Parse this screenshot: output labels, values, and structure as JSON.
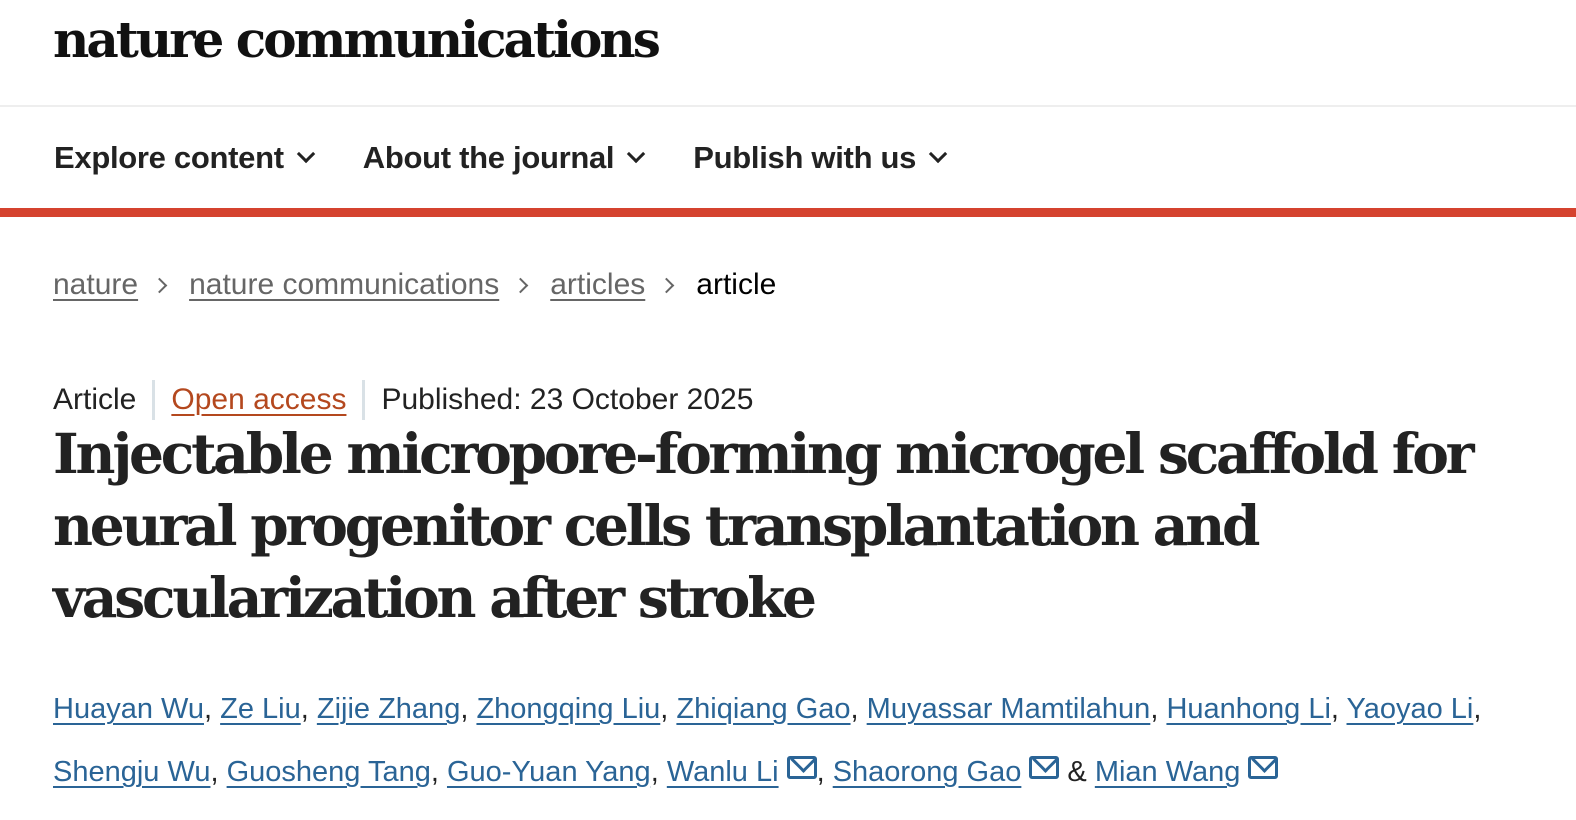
{
  "site": {
    "logo": "nature communications"
  },
  "nav": [
    {
      "label": "Explore content"
    },
    {
      "label": "About the journal"
    },
    {
      "label": "Publish with us"
    }
  ],
  "breadcrumb": {
    "items": [
      "nature",
      "nature communications",
      "articles"
    ],
    "current": "article"
  },
  "meta": {
    "type": "Article",
    "access": "Open access",
    "published": "Published: 23 October 2025"
  },
  "title": "Injectable micropore-forming microgel scaffold for neural progenitor cells transplantation and vascularization after stroke",
  "authors": [
    {
      "name": "Huayan Wu",
      "email": false
    },
    {
      "name": "Ze Liu",
      "email": false
    },
    {
      "name": "Zijie Zhang",
      "email": false
    },
    {
      "name": "Zhongqing Liu",
      "email": false
    },
    {
      "name": "Zhiqiang Gao",
      "email": false
    },
    {
      "name": "Muyassar Mamtilahun",
      "email": false
    },
    {
      "name": "Huanhong Li",
      "email": false
    },
    {
      "name": "Yaoyao Li",
      "email": false
    },
    {
      "name": "Shengju Wu",
      "email": false
    },
    {
      "name": "Guosheng Tang",
      "email": false
    },
    {
      "name": "Guo-Yuan Yang",
      "email": false
    },
    {
      "name": "Wanlu Li",
      "email": true
    },
    {
      "name": "Shaorong Gao",
      "email": true
    },
    {
      "name": "Mian Wang",
      "email": true
    }
  ],
  "colors": {
    "accent": "#d5432f",
    "link": "#2a6496",
    "open_access": "#b4481e"
  }
}
